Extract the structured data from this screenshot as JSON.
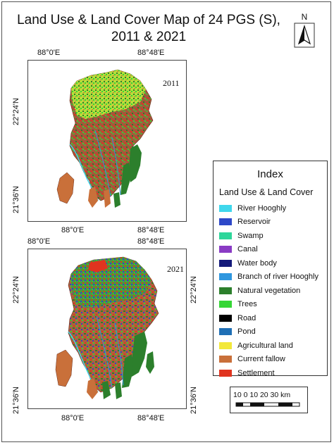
{
  "map": {
    "title_line1": "Land Use & Land Cover Map of 24 PGS (S),",
    "title_line2": "2011 & 2021",
    "north_label": "N",
    "panels": [
      {
        "year": "2011",
        "top_left_lon": "88°0'E",
        "top_right_lon": "88°48'E",
        "bottom_left_lon": "88°0'E",
        "bottom_right_lon": "88°48'E",
        "left_upper_lat": "22°24'N",
        "left_lower_lat": "21°36'N"
      },
      {
        "year": "2021",
        "top_left_lon": "88°0'E",
        "top_right_lon": "88°48'E",
        "bottom_left_lon": "88°0'E",
        "bottom_right_lon": "88°48'E",
        "left_upper_lat": "22°24'N",
        "left_lower_lat": "21°36'N",
        "right_upper_lat": "22°24'N",
        "right_lower_lat": "21°36'N"
      }
    ],
    "legend": {
      "title": "Index",
      "subtitle": "Land Use & Land Cover",
      "items": [
        {
          "label": "River Hooghly",
          "color": "#3fd7ec"
        },
        {
          "label": "Reservoir",
          "color": "#2d48c8"
        },
        {
          "label": "Swamp",
          "color": "#2ed69a"
        },
        {
          "label": "Canal",
          "color": "#8a3bc4"
        },
        {
          "label": "Water body",
          "color": "#141a7a"
        },
        {
          "label": "Branch of river Hooghly",
          "color": "#2f97df"
        },
        {
          "label": "Natural vegetation",
          "color": "#2c7f2c"
        },
        {
          "label": "Trees",
          "color": "#35d635"
        },
        {
          "label": "Road",
          "color": "#000000"
        },
        {
          "label": "Pond",
          "color": "#1f6fb5"
        },
        {
          "label": "Agricultural land",
          "color": "#f2e83a"
        },
        {
          "label": "Current fallow",
          "color": "#c9703a"
        },
        {
          "label": "Settlement",
          "color": "#e0341f"
        }
      ]
    },
    "scale_bar": {
      "text": "10  0  10 20 30 km"
    }
  }
}
